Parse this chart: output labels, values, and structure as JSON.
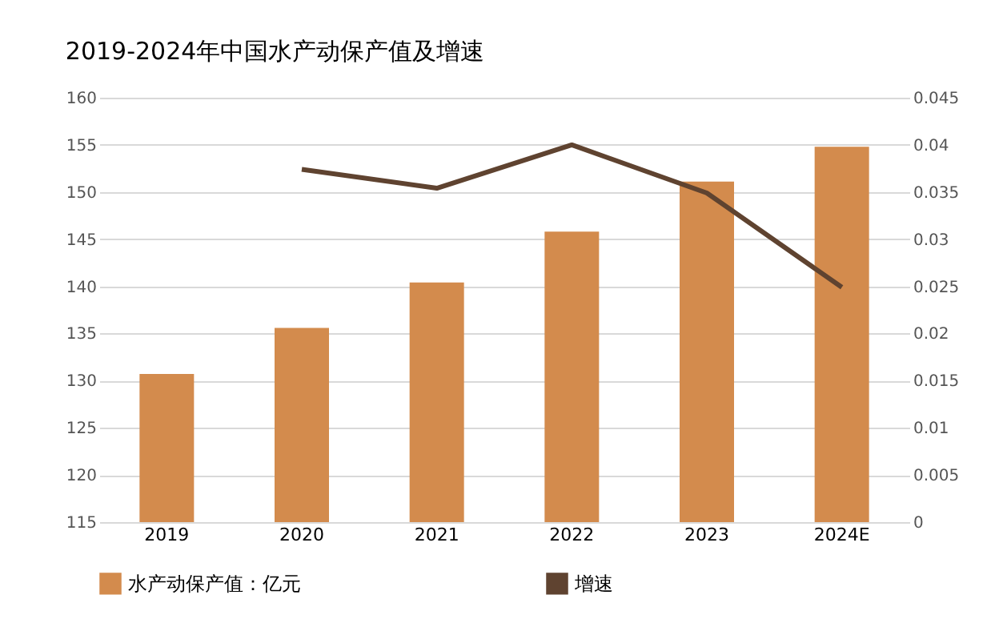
{
  "chart_data": {
    "type": "bar",
    "title": "2019-2024年中国水产动保产值及增速",
    "categories": [
      "2019",
      "2020",
      "2021",
      "2022",
      "2023",
      "2024E"
    ],
    "series": [
      {
        "name": "水产动保产值：亿元",
        "color": "#d38b4d",
        "values": [
          130.7,
          135.6,
          140.4,
          145.8,
          151.1,
          154.8
        ]
      },
      {
        "name": "增速",
        "type": "line",
        "axis": "y2",
        "color": "#5f4330",
        "values": [
          null,
          0.0374,
          0.0354,
          0.04,
          0.0349,
          0.0249
        ]
      }
    ],
    "ylim": [
      115,
      160
    ],
    "yticks": [
      115,
      120,
      125,
      130,
      135,
      140,
      145,
      150,
      155,
      160
    ],
    "y2lim": [
      0,
      0.045
    ],
    "y2ticks": [
      0,
      0.005,
      0.01,
      0.015,
      0.02,
      0.025,
      0.03,
      0.035,
      0.04,
      0.045
    ],
    "grid": "y",
    "legend": "bottom",
    "marker": "none",
    "line_style": "solid"
  }
}
